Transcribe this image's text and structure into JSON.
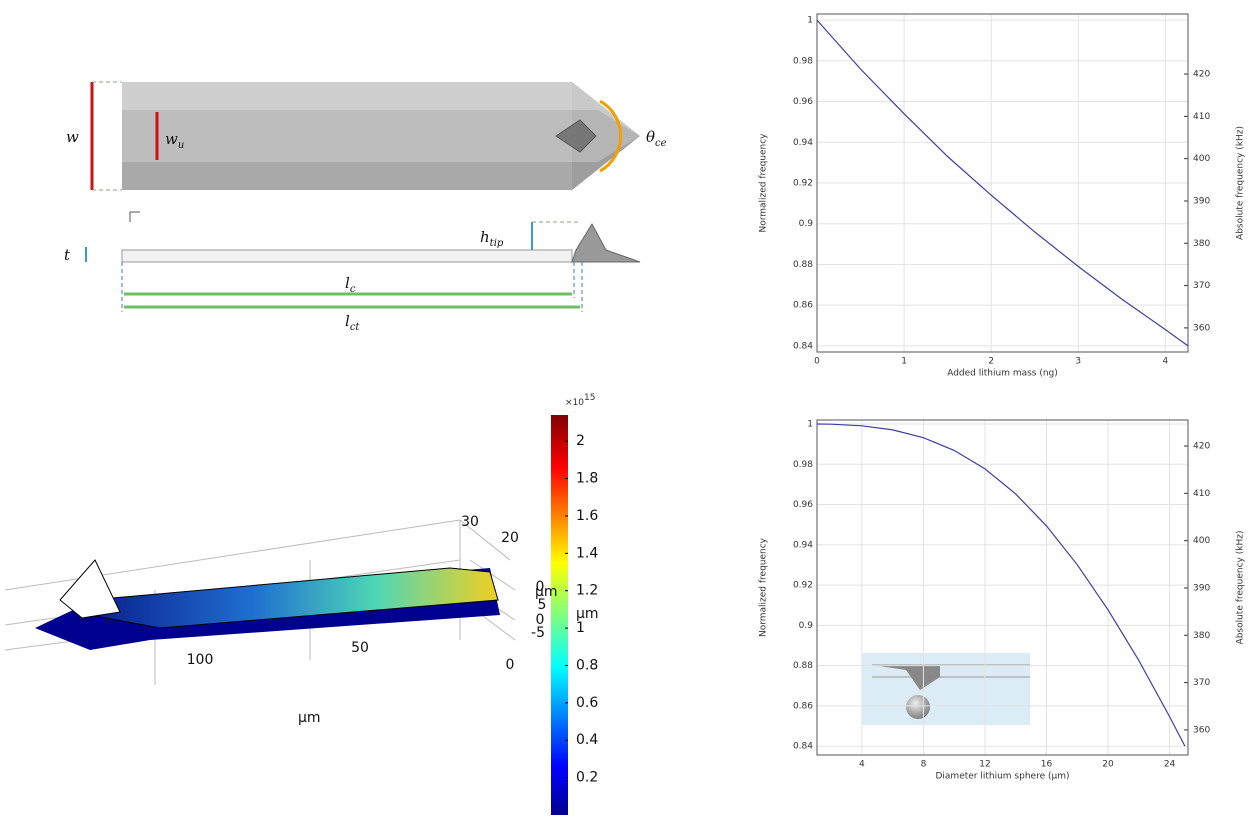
{
  "chart_data": [
    {
      "type": "line",
      "xlabel": "Added lithium mass (ng)",
      "ylabel": "Normalized frequency",
      "y2label": "Absolute frequency (kHz)",
      "x": [
        0,
        0.5,
        1,
        1.5,
        2,
        2.5,
        3,
        3.5,
        4,
        4.26
      ],
      "series": [
        {
          "color": "#3a3fa8",
          "values": [
            1.0,
            0.976,
            0.954,
            0.933,
            0.914,
            0.896,
            0.879,
            0.863,
            0.848,
            0.84
          ]
        }
      ],
      "xlim": [
        0,
        4.26
      ],
      "xticks": [
        0,
        1,
        2,
        3,
        4
      ],
      "ylim": [
        0.837,
        1.003
      ],
      "yticks": [
        0.84,
        0.86,
        0.88,
        0.9,
        0.92,
        0.94,
        0.96,
        0.98,
        1
      ],
      "y2lim": [
        354.3,
        434.2
      ],
      "y2ticks": [
        360,
        370,
        380,
        390,
        400,
        410,
        420
      ],
      "grid": true
    },
    {
      "type": "line",
      "xlabel": "Diameter lithium sphere (μm)",
      "ylabel": "Normalized frequency",
      "y2label": "Absolute frequency (kHz)",
      "x": [
        1.08,
        2,
        4,
        6,
        8,
        10,
        12,
        14,
        16,
        18,
        20,
        22,
        24,
        25
      ],
      "series": [
        {
          "color": "#3a3fa8",
          "values": [
            1.0,
            0.9999,
            0.9991,
            0.9971,
            0.9932,
            0.9869,
            0.9777,
            0.9653,
            0.9494,
            0.9301,
            0.9077,
            0.8826,
            0.8547,
            0.84
          ]
        }
      ],
      "xlim": [
        1.08,
        25.2
      ],
      "xticks": [
        4,
        8,
        12,
        16,
        20,
        24
      ],
      "ylim": [
        0.8356,
        1.002
      ],
      "yticks": [
        0.84,
        0.86,
        0.88,
        0.9,
        0.92,
        0.94,
        0.96,
        0.98,
        1
      ],
      "y2lim": [
        354.7,
        425.5
      ],
      "y2ticks": [
        360,
        370,
        380,
        390,
        400,
        410,
        420
      ],
      "grid": true
    }
  ],
  "diagram": {
    "labels": [
      {
        "main": "w",
        "sub": ""
      },
      {
        "main": "w",
        "sub": "u"
      },
      {
        "main": "θ",
        "sub": "ce"
      },
      {
        "main": "t",
        "sub": ""
      },
      {
        "main": "h",
        "sub": "tip"
      },
      {
        "main": "l",
        "sub": "c"
      },
      {
        "main": "l",
        "sub": "ct"
      }
    ]
  },
  "surface_plot": {
    "axis_labels": [
      "μm",
      "μm",
      "μm"
    ],
    "axis_ticks": [
      "100",
      "50",
      "0",
      "30",
      "20",
      "0",
      "5",
      "0",
      "-5"
    ],
    "colorbar": {
      "multiplier": "×10",
      "exponent": "15",
      "clim": [
        0,
        2.14
      ],
      "ticks": [
        0.2,
        0.4,
        0.6,
        0.8,
        1,
        1.2,
        1.4,
        1.6,
        1.8,
        2
      ]
    }
  }
}
